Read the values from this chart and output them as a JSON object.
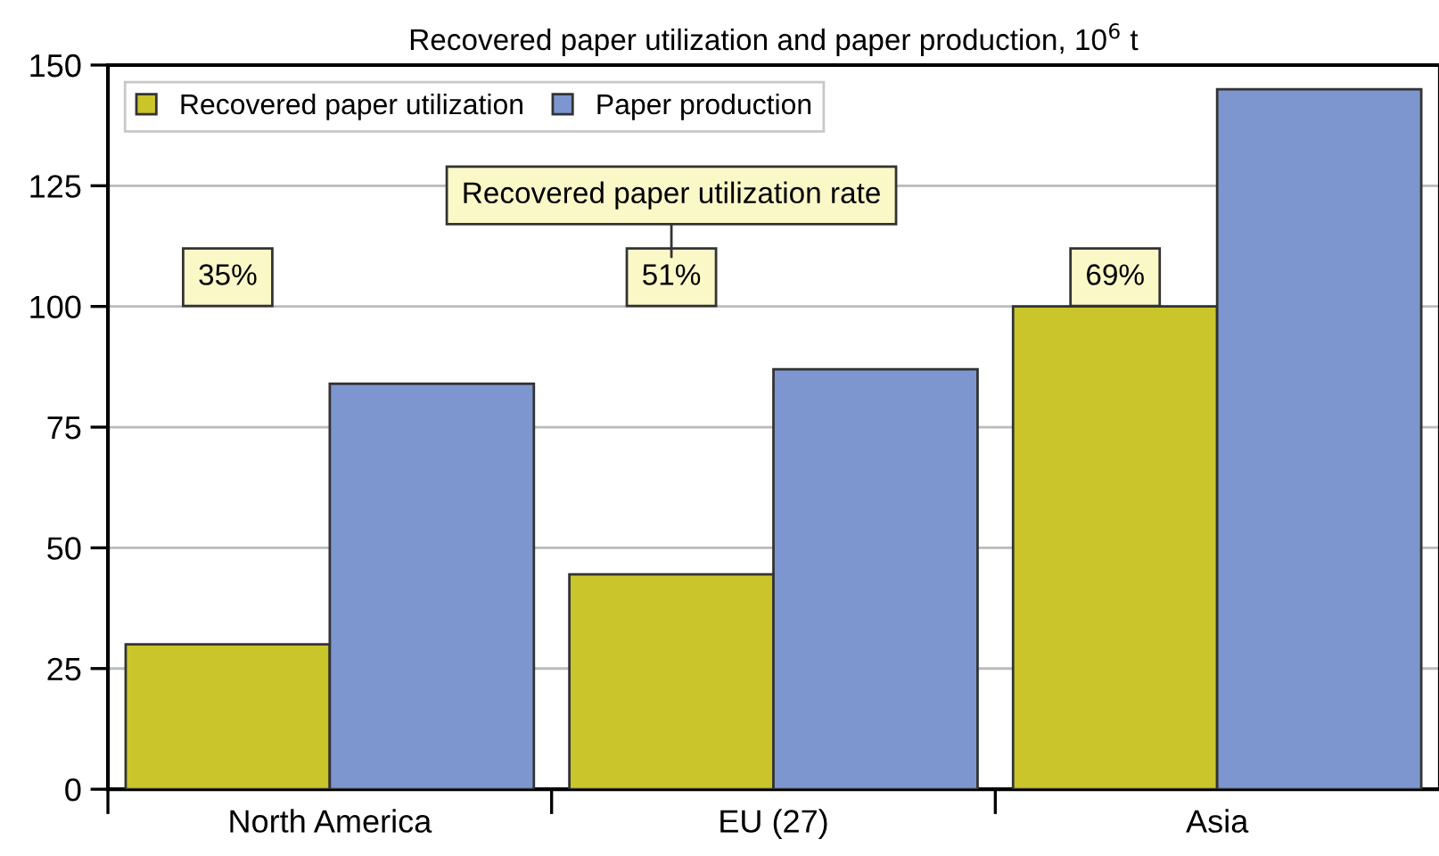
{
  "chart_data": {
    "type": "bar",
    "title": "Recovered paper utilization and paper production, 10$^{6}$ t",
    "categories": [
      "North America",
      "EU (27)",
      "Asia"
    ],
    "series": [
      {
        "name": "Recovered paper utilization",
        "color": "#c9c52a",
        "values": [
          30,
          44.5,
          100
        ]
      },
      {
        "name": "Paper production",
        "color": "#7d96cf",
        "values": [
          84,
          87,
          145
        ]
      }
    ],
    "ylim": [
      0,
      150
    ],
    "yticks": [
      0,
      25,
      50,
      75,
      100,
      125,
      150
    ],
    "grid": "y",
    "legend": "top left",
    "annotations": [
      "Recovered paper utilization rate",
      "35%",
      "51%",
      "69%"
    ]
  }
}
